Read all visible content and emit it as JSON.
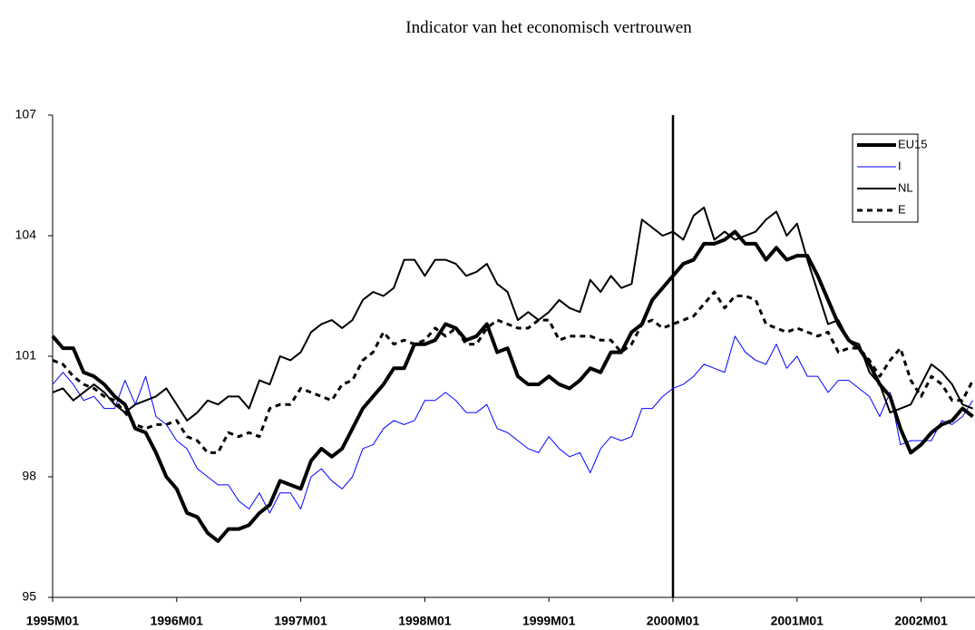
{
  "chart_data": {
    "type": "line",
    "title": "Indicator van het economisch vertrouwen",
    "categories": [
      "1995M01",
      null,
      null,
      null,
      null,
      null,
      null,
      null,
      null,
      null,
      null,
      null,
      "1996M01",
      null,
      null,
      null,
      null,
      null,
      null,
      null,
      null,
      null,
      null,
      null,
      "1997M01",
      null,
      null,
      null,
      null,
      null,
      null,
      null,
      null,
      null,
      null,
      null,
      "1998M01",
      null,
      null,
      null,
      null,
      null,
      null,
      null,
      null,
      null,
      null,
      null,
      "1999M01",
      null,
      null,
      null,
      null,
      null,
      null,
      null,
      null,
      null,
      null,
      null,
      "2000M01",
      null,
      null,
      null,
      null,
      null,
      null,
      null,
      null,
      null,
      null,
      null,
      "2001M01",
      null,
      null,
      null,
      null,
      null,
      null,
      null,
      null,
      null,
      null,
      null,
      "2002M01",
      null,
      null,
      null,
      null,
      null
    ],
    "vertical_line_at": 60,
    "ylim": [
      95,
      107
    ],
    "yticks": [
      95,
      98,
      101,
      104,
      107
    ],
    "grid": false,
    "legend": "top-right",
    "series": [
      {
        "name": "EU15",
        "color": "#000000",
        "width": 4,
        "dashed": false,
        "values": [
          101.5,
          101.2,
          101.2,
          100.6,
          100.5,
          100.3,
          100.0,
          99.8,
          99.2,
          99.1,
          98.6,
          98.0,
          97.7,
          97.1,
          97.0,
          96.6,
          96.4,
          96.7,
          96.7,
          96.8,
          97.1,
          97.3,
          97.9,
          97.8,
          97.7,
          98.4,
          98.7,
          98.5,
          98.7,
          99.2,
          99.7,
          100.0,
          100.3,
          100.7,
          100.7,
          101.3,
          101.3,
          101.4,
          101.8,
          101.7,
          101.4,
          101.5,
          101.8,
          101.1,
          101.2,
          100.5,
          100.3,
          100.3,
          100.5,
          100.3,
          100.2,
          100.4,
          100.7,
          100.6,
          101.1,
          101.1,
          101.6,
          101.8,
          102.4,
          102.7,
          103.0,
          103.3,
          103.4,
          103.8,
          103.8,
          103.9,
          104.1,
          103.8,
          103.8,
          103.4,
          103.7,
          103.4,
          103.5,
          103.5,
          103.0,
          102.4,
          101.8,
          101.4,
          101.2,
          100.8,
          100.3,
          100.0,
          99.2,
          98.6,
          98.8,
          99.1,
          99.3,
          99.4,
          99.7,
          99.5
        ]
      },
      {
        "name": "I",
        "color": "#0000ff",
        "width": 1,
        "dashed": false,
        "values": [
          100.3,
          100.6,
          100.3,
          99.9,
          100.0,
          99.7,
          99.7,
          100.4,
          99.8,
          100.5,
          99.5,
          99.3,
          98.9,
          98.7,
          98.2,
          98.0,
          97.8,
          97.8,
          97.4,
          97.2,
          97.6,
          97.1,
          97.6,
          97.6,
          97.2,
          98.0,
          98.2,
          97.9,
          97.7,
          98.0,
          98.7,
          98.8,
          99.2,
          99.4,
          99.3,
          99.4,
          99.9,
          99.9,
          100.1,
          99.9,
          99.6,
          99.6,
          99.8,
          99.2,
          99.1,
          98.9,
          98.7,
          98.6,
          99.0,
          98.7,
          98.5,
          98.6,
          98.1,
          98.7,
          99.0,
          98.9,
          99.0,
          99.7,
          99.7,
          100.0,
          100.2,
          100.3,
          100.5,
          100.8,
          100.7,
          100.6,
          101.5,
          101.1,
          100.9,
          100.8,
          101.3,
          100.7,
          101.0,
          100.5,
          100.5,
          100.1,
          100.4,
          100.4,
          100.2,
          100.0,
          99.5,
          100.1,
          98.8,
          98.9,
          98.9,
          98.9,
          99.4,
          99.3,
          99.5,
          99.9
        ]
      },
      {
        "name": "NL",
        "color": "#000000",
        "width": 2,
        "dashed": false,
        "values": [
          100.1,
          100.2,
          99.9,
          100.1,
          100.3,
          100.1,
          99.8,
          99.6,
          99.8,
          99.9,
          100.0,
          100.2,
          99.8,
          99.4,
          99.6,
          99.9,
          99.8,
          100.0,
          100.0,
          99.7,
          100.4,
          100.3,
          101.0,
          100.9,
          101.1,
          101.6,
          101.8,
          101.9,
          101.7,
          101.9,
          102.4,
          102.6,
          102.5,
          102.7,
          103.4,
          103.4,
          103.0,
          103.4,
          103.4,
          103.3,
          103.0,
          103.1,
          103.3,
          102.8,
          102.6,
          101.9,
          102.1,
          101.9,
          102.1,
          102.4,
          102.2,
          102.1,
          102.9,
          102.6,
          103.0,
          102.7,
          102.8,
          104.4,
          104.2,
          104.0,
          104.1,
          103.9,
          104.5,
          104.7,
          103.9,
          104.1,
          103.9,
          104.0,
          104.1,
          104.4,
          104.6,
          104.0,
          104.3,
          103.4,
          102.6,
          101.8,
          101.9,
          101.4,
          101.3,
          100.6,
          100.3,
          99.6,
          99.7,
          99.8,
          100.3,
          100.8,
          100.6,
          100.3,
          99.8,
          99.7
        ]
      },
      {
        "name": "E",
        "color": "#000000",
        "width": 3,
        "dashed": true,
        "values": [
          100.9,
          100.8,
          100.5,
          100.3,
          100.2,
          100.0,
          99.9,
          99.6,
          99.3,
          99.2,
          99.3,
          99.3,
          99.4,
          99.0,
          98.9,
          98.6,
          98.6,
          99.1,
          99.0,
          99.1,
          99.0,
          99.7,
          99.8,
          99.8,
          100.2,
          100.1,
          100.0,
          99.9,
          100.3,
          100.4,
          100.9,
          101.1,
          101.6,
          101.3,
          101.4,
          101.3,
          101.4,
          101.7,
          101.5,
          101.7,
          101.3,
          101.3,
          101.7,
          101.9,
          101.8,
          101.7,
          101.7,
          101.9,
          101.9,
          101.4,
          101.5,
          101.5,
          101.5,
          101.4,
          101.4,
          101.1,
          101.3,
          101.8,
          101.9,
          101.7,
          101.8,
          101.9,
          102.0,
          102.3,
          102.6,
          102.2,
          102.5,
          102.5,
          102.4,
          101.8,
          101.7,
          101.6,
          101.7,
          101.6,
          101.5,
          101.6,
          101.1,
          101.2,
          101.2,
          100.9,
          100.5,
          100.9,
          101.2,
          100.4,
          100.0,
          100.5,
          100.3,
          99.9,
          99.9,
          100.4
        ]
      }
    ]
  }
}
